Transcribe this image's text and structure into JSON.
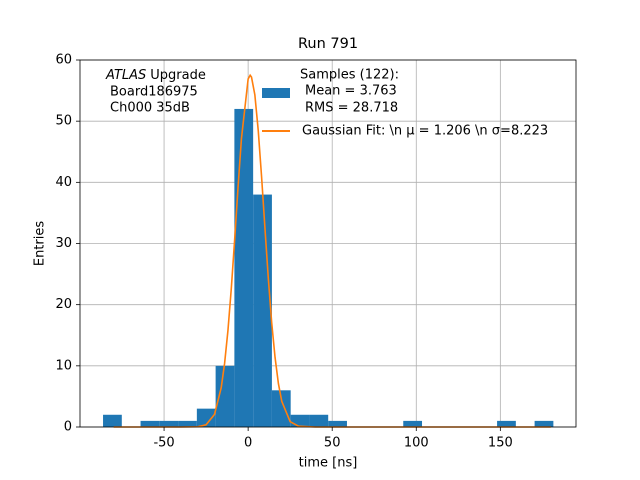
{
  "chart_data": {
    "type": "histogram",
    "title": "Run 791",
    "x_label": "time [ns]",
    "y_label": "Entries",
    "annotation": [
      "ATLAS",
      "Upgrade",
      "Board186975",
      "Ch000 35dB"
    ],
    "bins": [
      -86.3,
      -75.14,
      -63.98,
      -52.82,
      -41.66,
      -30.5,
      -19.34,
      -8.18,
      2.98,
      14.14,
      25.3,
      36.46,
      47.62,
      58.78,
      69.94,
      81.1,
      92.26,
      103.42,
      114.58,
      125.74,
      136.9,
      148.06,
      159.22,
      170.38,
      181.54
    ],
    "values": [
      2,
      0,
      1,
      1,
      1,
      3,
      10,
      52,
      38,
      6,
      2,
      2,
      1,
      0,
      0,
      0,
      1,
      0,
      0,
      0,
      0,
      1,
      0,
      1
    ],
    "name": [
      "Samples (122):",
      "Mean = 3.763",
      "RMS = 28.718"
    ],
    "color": "#1f77b4",
    "overlay": {
      "type": "line",
      "name": "Gaussian Fit: \\n μ = 1.206 \\n σ=8.223",
      "color": "#ff7f0e",
      "x": [
        -80,
        -40,
        -30,
        -25,
        -20,
        -16,
        -14,
        -12,
        -10,
        -8,
        -6,
        -4,
        0,
        1.206,
        2,
        4,
        6,
        8,
        10,
        12,
        14,
        16,
        18,
        20,
        25,
        30,
        40,
        180
      ],
      "values": [
        0,
        0,
        0.04,
        0.36,
        2.07,
        6.44,
        10.4,
        15.8,
        22.7,
        30.7,
        39.2,
        47.1,
        56.9,
        57.5,
        57.2,
        54.3,
        48.5,
        40.9,
        32.5,
        24.3,
        17.1,
        11.4,
        7.1,
        4.2,
        0.87,
        0.13,
        0,
        0
      ]
    },
    "xlim": [
      -100,
      195
    ],
    "ylim": [
      0,
      60
    ],
    "xticks": [
      -50,
      0,
      50,
      100,
      150
    ],
    "yticks": [
      0,
      10,
      20,
      30,
      40,
      50,
      60
    ],
    "grid": true
  }
}
